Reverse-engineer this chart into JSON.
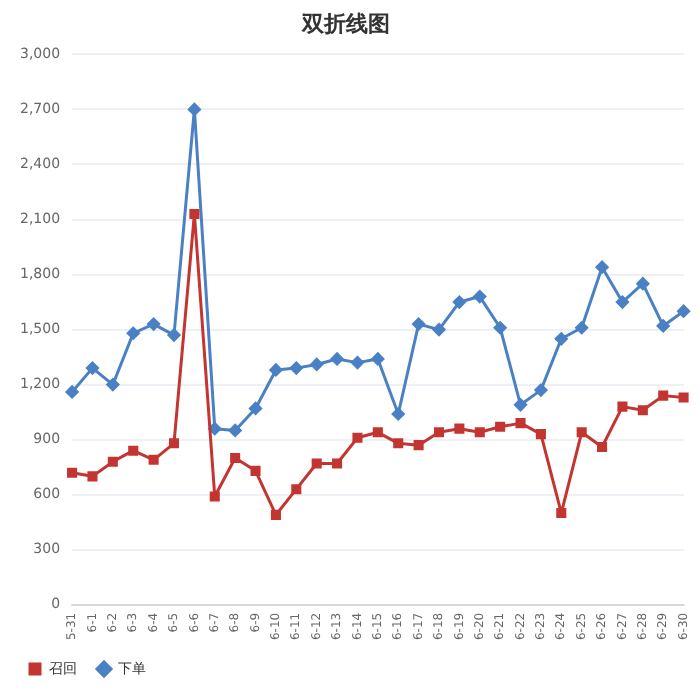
{
  "chart_data": {
    "type": "line",
    "title": "双折线图",
    "categories": [
      "5-31",
      "6-1",
      "6-2",
      "6-3",
      "6-4",
      "6-5",
      "6-6",
      "6-7",
      "6-8",
      "6-9",
      "6-10",
      "6-11",
      "6-12",
      "6-13",
      "6-14",
      "6-15",
      "6-16",
      "6-17",
      "6-18",
      "6-19",
      "6-20",
      "6-21",
      "6-22",
      "6-23",
      "6-24",
      "6-25",
      "6-26",
      "6-27",
      "6-28",
      "6-29",
      "6-30"
    ],
    "series": [
      {
        "name": "召回",
        "color": "#c23531",
        "marker": "square",
        "values": [
          720,
          700,
          780,
          840,
          790,
          880,
          2130,
          590,
          800,
          730,
          490,
          630,
          770,
          770,
          910,
          940,
          880,
          870,
          940,
          960,
          940,
          970,
          990,
          930,
          500,
          940,
          860,
          1080,
          1060,
          1140,
          1130
        ]
      },
      {
        "name": "下单",
        "color": "#4a80c4",
        "marker": "diamond",
        "values": [
          1160,
          1290,
          1200,
          1480,
          1530,
          1470,
          2700,
          960,
          950,
          1070,
          1280,
          1290,
          1310,
          1340,
          1320,
          1340,
          1040,
          1530,
          1500,
          1650,
          1680,
          1510,
          1090,
          1170,
          1450,
          1510,
          1840,
          1650,
          1750,
          1520,
          1600
        ]
      }
    ],
    "ylim": [
      0,
      3000
    ],
    "yticks": [
      0,
      300,
      600,
      900,
      {
        "value": 1200,
        "label": "1,200"
      },
      {
        "value": 1500,
        "label": "1,500"
      },
      {
        "value": 1800,
        "label": "1,800"
      },
      {
        "value": 2100,
        "label": "2,100"
      },
      {
        "value": 2400,
        "label": "2,400"
      },
      {
        "value": 2700,
        "label": "2,700"
      },
      {
        "value": 3000,
        "label": "3,000"
      }
    ],
    "grid": "y",
    "legend": "bottom left",
    "line_style": "solid"
  }
}
